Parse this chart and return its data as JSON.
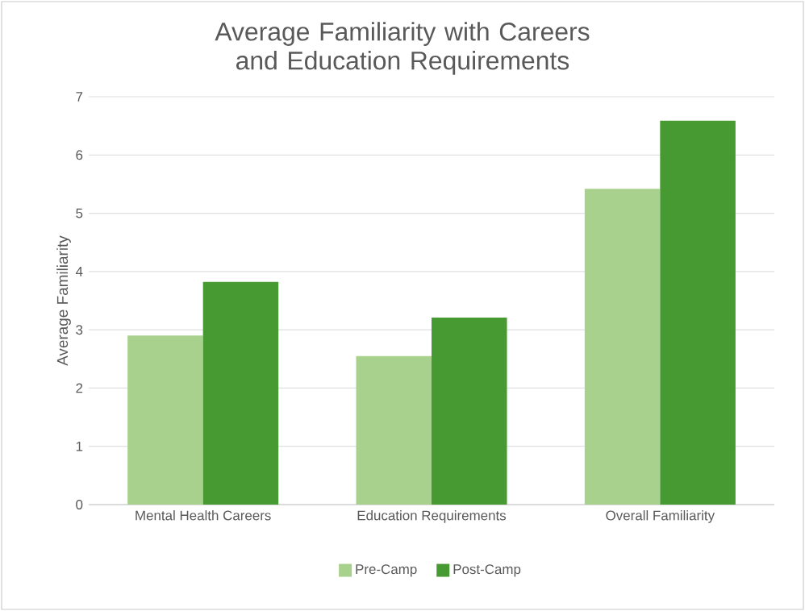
{
  "chart_data": {
    "type": "bar",
    "title": "Average Familiarity with Careers and Education Requirements",
    "ylabel": "Average Familiarity",
    "categories": [
      "Mental Health Careers",
      "Education Requirements",
      "Overall Familiarity"
    ],
    "series": [
      {
        "name": "Pre-Camp",
        "color": "#a9d18e",
        "values": [
          2.9,
          2.55,
          5.42
        ]
      },
      {
        "name": "Post-Camp",
        "color": "#479a31",
        "values": [
          3.82,
          3.21,
          6.59
        ]
      }
    ],
    "ylim": [
      0,
      7
    ],
    "yticks": [
      0,
      1,
      2,
      3,
      4,
      5,
      6,
      7
    ],
    "grid": "y",
    "legend": "bottom"
  }
}
